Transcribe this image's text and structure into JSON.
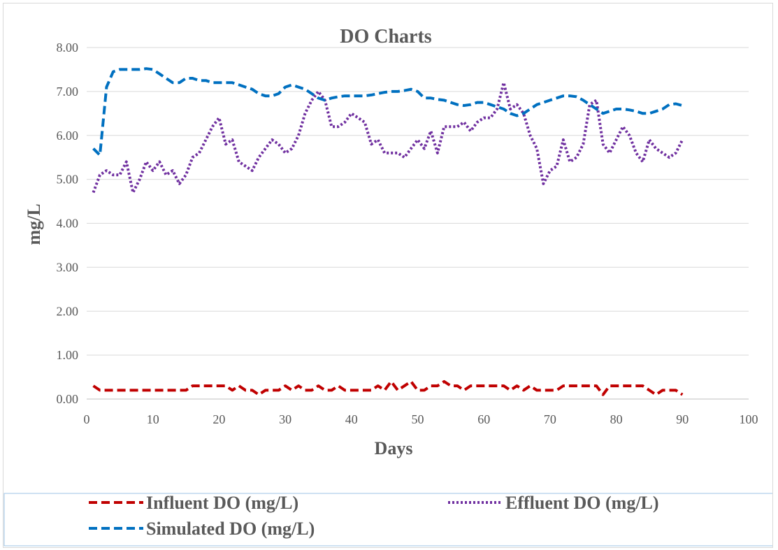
{
  "chart_data": {
    "type": "line",
    "title": "DO Charts",
    "xlabel": "Days",
    "ylabel": "mg/L",
    "xlim": [
      0,
      100
    ],
    "ylim": [
      0,
      8
    ],
    "x_ticks": [
      "0",
      "10",
      "20",
      "30",
      "40",
      "50",
      "60",
      "70",
      "80",
      "90",
      "100"
    ],
    "y_ticks": [
      "0.00",
      "1.00",
      "2.00",
      "3.00",
      "4.00",
      "5.00",
      "6.00",
      "7.00",
      "8.00"
    ],
    "grid": "horizontal",
    "legend_position": "bottom",
    "series": [
      {
        "name": "Influent DO (mg/L)",
        "color": "#c00000",
        "dash": "dashed",
        "x": [
          1,
          2,
          3,
          4,
          5,
          6,
          7,
          8,
          9,
          10,
          11,
          12,
          13,
          14,
          15,
          16,
          17,
          18,
          19,
          20,
          21,
          22,
          23,
          24,
          25,
          26,
          27,
          28,
          29,
          30,
          31,
          32,
          33,
          34,
          35,
          36,
          37,
          38,
          39,
          40,
          41,
          42,
          43,
          44,
          45,
          46,
          47,
          48,
          49,
          50,
          51,
          52,
          53,
          54,
          55,
          56,
          57,
          58,
          59,
          60,
          61,
          62,
          63,
          64,
          65,
          66,
          67,
          68,
          69,
          70,
          71,
          72,
          73,
          74,
          75,
          76,
          77,
          78,
          79,
          80,
          81,
          82,
          83,
          84,
          85,
          86,
          87,
          88,
          89,
          90
        ],
        "y": [
          0.3,
          0.2,
          0.2,
          0.2,
          0.2,
          0.2,
          0.2,
          0.2,
          0.2,
          0.2,
          0.2,
          0.2,
          0.2,
          0.2,
          0.2,
          0.3,
          0.3,
          0.3,
          0.3,
          0.3,
          0.3,
          0.2,
          0.3,
          0.2,
          0.2,
          0.1,
          0.2,
          0.2,
          0.2,
          0.3,
          0.2,
          0.3,
          0.2,
          0.2,
          0.3,
          0.2,
          0.2,
          0.3,
          0.2,
          0.2,
          0.2,
          0.2,
          0.2,
          0.3,
          0.2,
          0.4,
          0.2,
          0.3,
          0.4,
          0.2,
          0.2,
          0.3,
          0.3,
          0.4,
          0.3,
          0.3,
          0.2,
          0.3,
          0.3,
          0.3,
          0.3,
          0.3,
          0.3,
          0.2,
          0.3,
          0.2,
          0.3,
          0.2,
          0.2,
          0.2,
          0.2,
          0.3,
          0.3,
          0.3,
          0.3,
          0.3,
          0.3,
          0.1,
          0.3,
          0.3,
          0.3,
          0.3,
          0.3,
          0.3,
          0.2,
          0.1,
          0.2,
          0.2,
          0.2,
          0.1
        ]
      },
      {
        "name": "Effluent DO (mg/L)",
        "color": "#7030a0",
        "dash": "dotted",
        "x": [
          1,
          2,
          3,
          4,
          5,
          6,
          7,
          8,
          9,
          10,
          11,
          12,
          13,
          14,
          15,
          16,
          17,
          18,
          19,
          20,
          21,
          22,
          23,
          24,
          25,
          26,
          27,
          28,
          29,
          30,
          31,
          32,
          33,
          34,
          35,
          36,
          37,
          38,
          39,
          40,
          41,
          42,
          43,
          44,
          45,
          46,
          47,
          48,
          49,
          50,
          51,
          52,
          53,
          54,
          55,
          56,
          57,
          58,
          59,
          60,
          61,
          62,
          63,
          64,
          65,
          66,
          67,
          68,
          69,
          70,
          71,
          72,
          73,
          74,
          75,
          76,
          77,
          78,
          79,
          80,
          81,
          82,
          83,
          84,
          85,
          86,
          87,
          88,
          89,
          90
        ],
        "y": [
          4.7,
          5.1,
          5.2,
          5.1,
          5.1,
          5.4,
          4.7,
          5.0,
          5.4,
          5.2,
          5.4,
          5.1,
          5.2,
          4.9,
          5.1,
          5.5,
          5.6,
          5.9,
          6.2,
          6.4,
          5.8,
          5.9,
          5.4,
          5.3,
          5.2,
          5.5,
          5.7,
          5.9,
          5.8,
          5.6,
          5.7,
          6.0,
          6.5,
          6.8,
          7.0,
          6.8,
          6.2,
          6.2,
          6.3,
          6.5,
          6.4,
          6.3,
          5.8,
          5.9,
          5.6,
          5.6,
          5.6,
          5.5,
          5.7,
          5.9,
          5.7,
          6.1,
          5.6,
          6.2,
          6.2,
          6.2,
          6.3,
          6.1,
          6.3,
          6.4,
          6.4,
          6.6,
          7.2,
          6.6,
          6.7,
          6.5,
          6.0,
          5.7,
          4.9,
          5.2,
          5.3,
          5.9,
          5.4,
          5.5,
          5.8,
          6.7,
          6.8,
          5.8,
          5.6,
          5.9,
          6.2,
          6.0,
          5.6,
          5.4,
          5.9,
          5.7,
          5.6,
          5.5,
          5.6,
          5.9
        ]
      },
      {
        "name": "Simulated DO (mg/L)",
        "color": "#0070c0",
        "dash": "dashed",
        "x": [
          1,
          2,
          3,
          4,
          5,
          6,
          7,
          8,
          9,
          10,
          11,
          12,
          13,
          14,
          15,
          16,
          17,
          18,
          19,
          20,
          21,
          22,
          23,
          24,
          25,
          26,
          27,
          28,
          29,
          30,
          31,
          32,
          33,
          34,
          35,
          36,
          37,
          38,
          39,
          40,
          41,
          42,
          43,
          44,
          45,
          46,
          47,
          48,
          49,
          50,
          51,
          52,
          53,
          54,
          55,
          56,
          57,
          58,
          59,
          60,
          61,
          62,
          63,
          64,
          65,
          66,
          67,
          68,
          69,
          70,
          71,
          72,
          73,
          74,
          75,
          76,
          77,
          78,
          79,
          80,
          81,
          82,
          83,
          84,
          85,
          86,
          87,
          88,
          89,
          90
        ],
        "y": [
          5.7,
          5.55,
          7.1,
          7.45,
          7.5,
          7.5,
          7.5,
          7.5,
          7.52,
          7.5,
          7.4,
          7.3,
          7.2,
          7.2,
          7.3,
          7.3,
          7.25,
          7.25,
          7.2,
          7.2,
          7.2,
          7.2,
          7.15,
          7.1,
          7.05,
          6.95,
          6.9,
          6.9,
          6.95,
          7.1,
          7.15,
          7.1,
          7.05,
          6.95,
          6.85,
          6.8,
          6.85,
          6.88,
          6.9,
          6.9,
          6.9,
          6.9,
          6.92,
          6.95,
          6.98,
          7.0,
          7.0,
          7.02,
          7.05,
          7.0,
          6.85,
          6.85,
          6.82,
          6.8,
          6.75,
          6.7,
          6.68,
          6.7,
          6.75,
          6.75,
          6.7,
          6.65,
          6.6,
          6.5,
          6.45,
          6.5,
          6.6,
          6.7,
          6.75,
          6.8,
          6.85,
          6.9,
          6.9,
          6.88,
          6.8,
          6.7,
          6.6,
          6.5,
          6.55,
          6.6,
          6.6,
          6.58,
          6.55,
          6.5,
          6.5,
          6.55,
          6.6,
          6.7,
          6.72,
          6.68
        ]
      }
    ]
  }
}
